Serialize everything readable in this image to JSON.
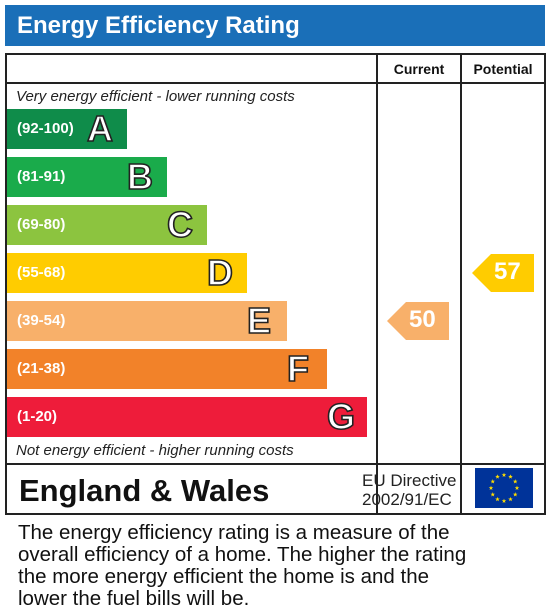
{
  "title": "Energy Efficiency Rating",
  "columns": {
    "current": "Current",
    "potential": "Potential"
  },
  "top_caption": "Very energy efficient - lower running costs",
  "bottom_caption": "Not energy efficient - higher running costs",
  "chart_data": {
    "type": "bar",
    "categories": [
      "A",
      "B",
      "C",
      "D",
      "E",
      "F",
      "G"
    ],
    "bands": [
      {
        "letter": "A",
        "range": "(92-100)",
        "color": "#0f8c4a"
      },
      {
        "letter": "B",
        "range": "(81-91)",
        "color": "#1aab4b"
      },
      {
        "letter": "C",
        "range": "(69-80)",
        "color": "#8cc43f"
      },
      {
        "letter": "D",
        "range": "(55-68)",
        "color": "#ffcc00"
      },
      {
        "letter": "E",
        "range": "(39-54)",
        "color": "#f8b06a"
      },
      {
        "letter": "F",
        "range": "(21-38)",
        "color": "#f28229"
      },
      {
        "letter": "G",
        "range": "(1-20)",
        "color": "#ee1c3a"
      }
    ],
    "current": {
      "value": 50,
      "band": "E",
      "color": "#f8b06a"
    },
    "potential": {
      "value": 57,
      "band": "D",
      "color": "#ffcc00"
    }
  },
  "footer": {
    "country": "England & Wales",
    "directive_line1": "EU Directive",
    "directive_line2": "2002/91/EC",
    "flag_color": "#003399",
    "star_color": "#ffdd00"
  },
  "description_lines": [
    "The energy efficiency rating is a measure of the",
    "overall efficiency of a home. The higher the rating",
    "the more energy efficient the home is and the",
    "lower the fuel bills will be."
  ]
}
